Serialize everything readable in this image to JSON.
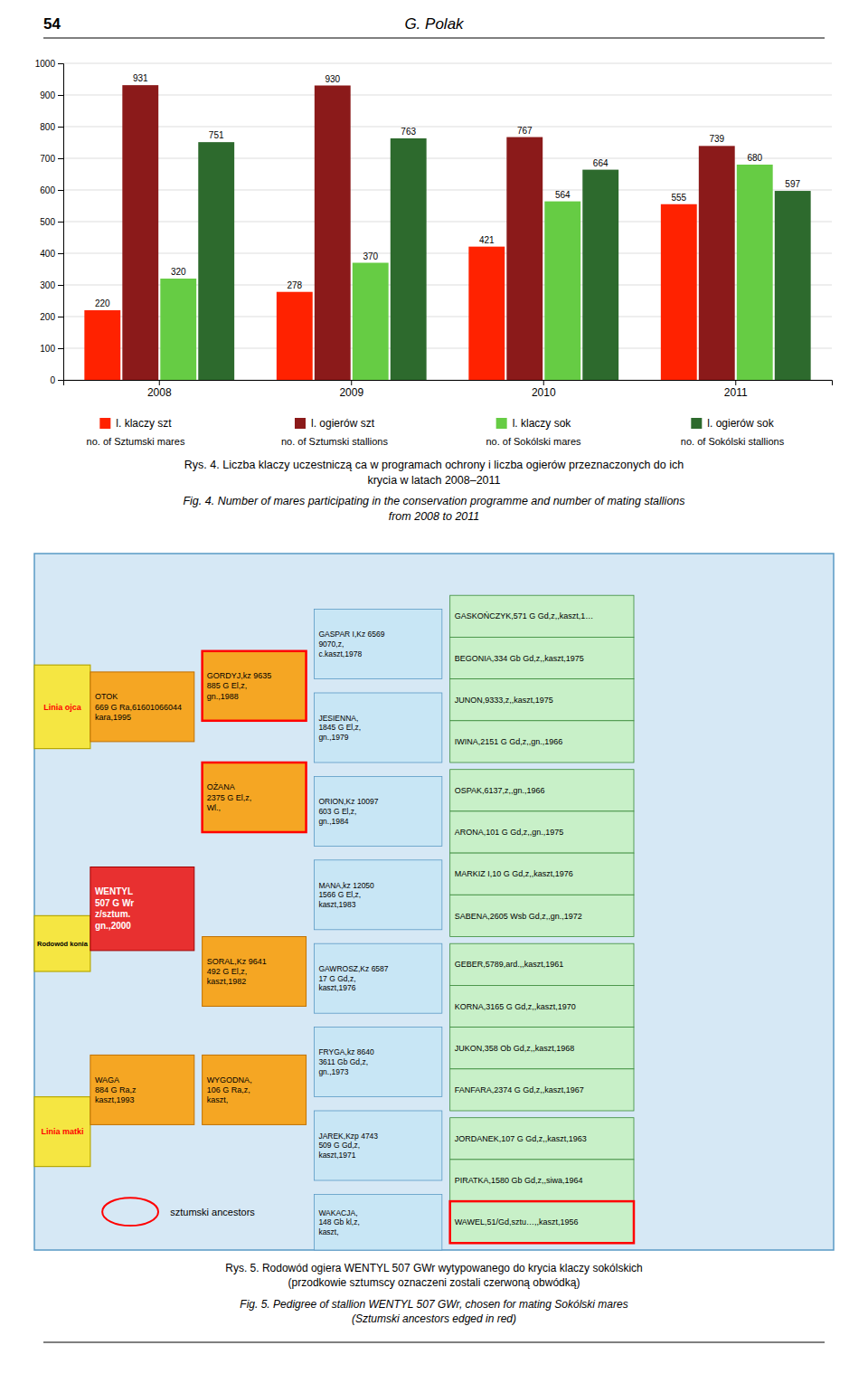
{
  "chart_data": {
    "type": "bar",
    "title": "Rys. 4. Liczba klaczy uczestniczą ca w programach ochrony i liczba ogierów przeznaczonych do ich\nkrycia w latach 2008–2011",
    "subtitle": "Fig. 4. Number of mares participating in the conservation programme and number of mating stallions\nfrom 2008 to 2011",
    "categories": [
      "2008",
      "2009",
      "2010",
      "2011"
    ],
    "series": [
      {
        "name": "l. klaczy szt",
        "color": "#ff2200",
        "values": [
          220,
          278,
          421,
          555
        ]
      },
      {
        "name": "l. ogierów szt",
        "color": "#8b1a1a",
        "values": [
          931,
          930,
          767,
          739
        ]
      },
      {
        "name": "l. klaczy sok",
        "color": "#66cc44",
        "values": [
          320,
          370,
          564,
          680
        ]
      },
      {
        "name": "l. ogierów sok",
        "color": "#2d6a2d",
        "values": [
          751,
          763,
          664,
          597
        ]
      }
    ],
    "ylim": [
      0,
      1000
    ],
    "yticks": [
      0,
      100,
      200,
      300,
      400,
      500,
      600,
      700,
      800,
      900,
      1000
    ],
    "grid": true,
    "legend": "bottom",
    "data_labels": true,
    "annotations": [
      "54",
      "G. Polak",
      "no. of Sztumski mares",
      "no. of Sztumski stallions",
      "no. of Sokólski mares",
      "no. of Sokólski stallions",
      "Linia ojca",
      "Rodowód konia",
      "Linia matki",
      "OTOK\n669 G Ra,61601066044\nkara,1995",
      "WAGA\n884 G Ra,z\nkaszt,1993",
      "WENTYL\n507 G Wr\nz/sztum.\ngn.,2000",
      "GORDYJ,kz 9635\n885 G El,z,\ngn.,1988",
      "OŻANA\n2375 G El,z,\nWl.,",
      "SORAL,Kz 9641\n492 G El,z,\nkaszt,1982",
      "WYGODNA,\n106 G Ra,z,\nkaszt,",
      "GASPAR I,Kz 6569\n9070,z,\nc.kaszt,1978",
      "JESIENNA,\n1845 G El,z,\ngn.,1979",
      "ORION,Kz 10097\n603 G El,z,\ngn.,1984",
      "MANA,kz 12050\n1566 G El,z,\nkaszt,1983",
      "GAWROSZ,Kz 6587\n17 G Gd,z,\nkaszt,1976",
      "FRYGA,kz 8640\n3611 Gb Gd,z,\ngn.,1973",
      "JAREK,Kzp 4743\n509 G Gd,z,\nkaszt,1971",
      "WAKACJA,\n148 Gb kl,z,\nkaszt,",
      "GASKOŃCZYK,571 G Gd,z,,kaszt,1…",
      "BEGONIA,334 Gb Gd,z,,kaszt,1975",
      "JUNON,9333,z,,kaszt,1975",
      "IWINA,2151 G Gd,z,,gn.,1966",
      "OSPAK,6137,z,,gn.,1966",
      "ARONA,101 G Gd,z,,gn.,1975",
      "MARKIZ I,10 G Gd,z,,kaszt,1976",
      "SABENA,2605 Wsb Gd,z,,gn.,1972",
      "GEBER,5789,ard.,,kaszt,1961",
      "KORNA,3165 G Gd,z,,kaszt,1970",
      "JUKON,358 Ob Gd,z,,kaszt,1968",
      "FANFARA,2374 G Gd,z,,kaszt,1967",
      "JORDANEK,107 G Gd,z,,kaszt,1963",
      "PIRATKA,1580 Gb Gd,z,,siwa,1964",
      "WAWEL,51/Gd,sztu…,,kaszt,1956",
      "sztumski ancestors",
      "Rys. 5. Rodowód ogiera WENTYL  507 GWr wytypowanego do krycia klaczy sokólskich\n(przodkowie sztumscy oznaczeni zostali czerwoną obwódką)",
      "Fig. 5. Pedigree of stallion WENTYL 507 GWr, chosen for mating Sokólski mares\n(Sztumski ancestors edged in red)"
    ]
  }
}
